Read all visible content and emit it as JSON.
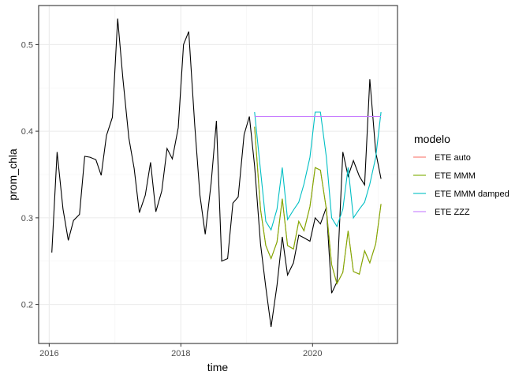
{
  "chart_data": {
    "type": "line",
    "xlabel": "time",
    "ylabel": "prom_chla",
    "x_ticks": [
      "2016",
      "2018",
      "2020"
    ],
    "y_ticks": [
      "0.2",
      "0.3",
      "0.4",
      "0.5"
    ],
    "xlim": [
      2015.84,
      2021.29
    ],
    "ylim": [
      0.155,
      0.545
    ],
    "grid": true,
    "legend": {
      "title": "modelo",
      "position": "right",
      "entries": [
        {
          "name": "ETE auto",
          "color": "#F8766D"
        },
        {
          "name": "ETE MMM",
          "color": "#7CAE00"
        },
        {
          "name": "ETE MMM damped",
          "color": "#00BFC4"
        },
        {
          "name": "ETE ZZZ",
          "color": "#C77CFF"
        }
      ]
    },
    "observed": {
      "color": "#000000",
      "points": [
        [
          2016.04,
          0.26
        ],
        [
          2016.12,
          0.376
        ],
        [
          2016.21,
          0.31
        ],
        [
          2016.29,
          0.274
        ],
        [
          2016.37,
          0.297
        ],
        [
          2016.46,
          0.304
        ],
        [
          2016.54,
          0.371
        ],
        [
          2016.62,
          0.37
        ],
        [
          2016.71,
          0.367
        ],
        [
          2016.79,
          0.349
        ],
        [
          2016.87,
          0.395
        ],
        [
          2016.96,
          0.416
        ],
        [
          2017.04,
          0.53
        ],
        [
          2017.12,
          0.46
        ],
        [
          2017.21,
          0.392
        ],
        [
          2017.29,
          0.357
        ],
        [
          2017.37,
          0.306
        ],
        [
          2017.46,
          0.326
        ],
        [
          2017.54,
          0.364
        ],
        [
          2017.62,
          0.307
        ],
        [
          2017.71,
          0.331
        ],
        [
          2017.79,
          0.38
        ],
        [
          2017.87,
          0.368
        ],
        [
          2017.96,
          0.404
        ],
        [
          2018.04,
          0.5
        ],
        [
          2018.12,
          0.515
        ],
        [
          2018.21,
          0.407
        ],
        [
          2018.29,
          0.326
        ],
        [
          2018.37,
          0.281
        ],
        [
          2018.46,
          0.34
        ],
        [
          2018.54,
          0.412
        ],
        [
          2018.62,
          0.25
        ],
        [
          2018.71,
          0.253
        ],
        [
          2018.79,
          0.317
        ],
        [
          2018.87,
          0.324
        ],
        [
          2018.96,
          0.396
        ],
        [
          2019.04,
          0.417
        ],
        [
          2019.12,
          0.36
        ],
        [
          2019.21,
          0.27
        ],
        [
          2019.29,
          0.22
        ],
        [
          2019.37,
          0.174
        ],
        [
          2019.46,
          0.222
        ],
        [
          2019.54,
          0.278
        ],
        [
          2019.62,
          0.234
        ],
        [
          2019.71,
          0.248
        ],
        [
          2019.79,
          0.28
        ],
        [
          2019.87,
          0.277
        ],
        [
          2019.96,
          0.273
        ],
        [
          2020.04,
          0.3
        ],
        [
          2020.12,
          0.293
        ],
        [
          2020.21,
          0.312
        ],
        [
          2020.29,
          0.213
        ],
        [
          2020.37,
          0.226
        ],
        [
          2020.46,
          0.376
        ],
        [
          2020.54,
          0.348
        ],
        [
          2020.62,
          0.366
        ],
        [
          2020.71,
          0.348
        ],
        [
          2020.79,
          0.338
        ],
        [
          2020.87,
          0.46
        ],
        [
          2020.96,
          0.376
        ],
        [
          2021.04,
          0.345
        ]
      ]
    },
    "series": [
      {
        "name": "ETE auto",
        "color": "#F8766D",
        "points": [
          [
            2019.12,
            0.405
          ],
          [
            2019.21,
            0.31
          ],
          [
            2019.29,
            0.268
          ],
          [
            2019.37,
            0.253
          ],
          [
            2019.46,
            0.272
          ],
          [
            2019.54,
            0.322
          ],
          [
            2019.62,
            0.268
          ],
          [
            2019.71,
            0.264
          ],
          [
            2019.79,
            0.296
          ],
          [
            2019.87,
            0.285
          ],
          [
            2019.96,
            0.313
          ],
          [
            2020.04,
            0.358
          ],
          [
            2020.12,
            0.355
          ],
          [
            2020.21,
            0.31
          ],
          [
            2020.29,
            0.246
          ],
          [
            2020.37,
            0.224
          ],
          [
            2020.46,
            0.237
          ],
          [
            2020.54,
            0.285
          ],
          [
            2020.62,
            0.238
          ],
          [
            2020.71,
            0.235
          ],
          [
            2020.79,
            0.262
          ],
          [
            2020.87,
            0.248
          ],
          [
            2020.96,
            0.27
          ],
          [
            2021.04,
            0.316
          ]
        ]
      },
      {
        "name": "ETE MMM",
        "color": "#7CAE00",
        "points": [
          [
            2019.12,
            0.405
          ],
          [
            2019.21,
            0.31
          ],
          [
            2019.29,
            0.268
          ],
          [
            2019.37,
            0.253
          ],
          [
            2019.46,
            0.272
          ],
          [
            2019.54,
            0.322
          ],
          [
            2019.62,
            0.268
          ],
          [
            2019.71,
            0.264
          ],
          [
            2019.79,
            0.296
          ],
          [
            2019.87,
            0.285
          ],
          [
            2019.96,
            0.313
          ],
          [
            2020.04,
            0.358
          ],
          [
            2020.12,
            0.355
          ],
          [
            2020.21,
            0.31
          ],
          [
            2020.29,
            0.246
          ],
          [
            2020.37,
            0.224
          ],
          [
            2020.46,
            0.237
          ],
          [
            2020.54,
            0.285
          ],
          [
            2020.62,
            0.238
          ],
          [
            2020.71,
            0.235
          ],
          [
            2020.79,
            0.262
          ],
          [
            2020.87,
            0.248
          ],
          [
            2020.96,
            0.27
          ],
          [
            2021.04,
            0.316
          ]
        ]
      },
      {
        "name": "ETE MMM damped",
        "color": "#00BFC4",
        "points": [
          [
            2019.12,
            0.422
          ],
          [
            2019.21,
            0.355
          ],
          [
            2019.29,
            0.296
          ],
          [
            2019.37,
            0.286
          ],
          [
            2019.46,
            0.31
          ],
          [
            2019.54,
            0.358
          ],
          [
            2019.62,
            0.298
          ],
          [
            2019.71,
            0.309
          ],
          [
            2019.79,
            0.318
          ],
          [
            2019.87,
            0.339
          ],
          [
            2019.96,
            0.37
          ],
          [
            2020.04,
            0.422
          ],
          [
            2020.12,
            0.422
          ],
          [
            2020.21,
            0.37
          ],
          [
            2020.29,
            0.3
          ],
          [
            2020.37,
            0.29
          ],
          [
            2020.46,
            0.31
          ],
          [
            2020.54,
            0.358
          ],
          [
            2020.62,
            0.3
          ],
          [
            2020.71,
            0.31
          ],
          [
            2020.79,
            0.318
          ],
          [
            2020.87,
            0.339
          ],
          [
            2020.96,
            0.37
          ],
          [
            2021.04,
            0.422
          ]
        ]
      },
      {
        "name": "ETE ZZZ",
        "color": "#C77CFF",
        "points": [
          [
            2019.12,
            0.417
          ],
          [
            2021.04,
            0.417
          ]
        ]
      }
    ]
  }
}
